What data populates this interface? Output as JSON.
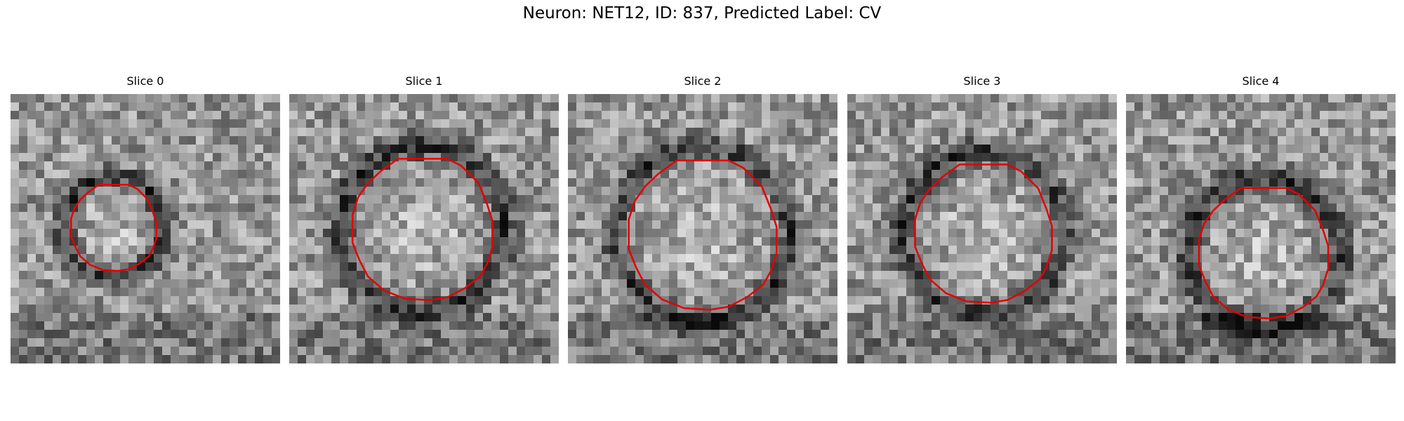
{
  "figure": {
    "title": "Neuron: NET12, ID: 837, Predicted Label: CV"
  },
  "colors": {
    "contour": "#e30000",
    "background": "#ffffff"
  },
  "panels": [
    {
      "title": "Slice 0"
    },
    {
      "title": "Slice 1"
    },
    {
      "title": "Slice 2"
    },
    {
      "title": "Slice 3"
    },
    {
      "title": "Slice 4"
    }
  ]
}
